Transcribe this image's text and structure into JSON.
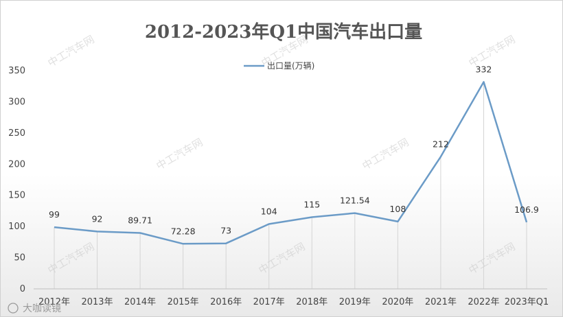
{
  "chart_data": {
    "type": "line",
    "title": "2012-2023年Q1中国汽车出口量",
    "categories": [
      "2012年",
      "2013年",
      "2014年",
      "2015年",
      "2016年",
      "2017年",
      "2018年",
      "2019年",
      "2020年",
      "2021年",
      "2022年",
      "2023年Q1"
    ],
    "series": [
      {
        "name": "出口量(万辆)",
        "values": [
          99,
          92,
          89.71,
          72.28,
          73,
          104,
          115,
          121.54,
          108,
          212,
          332,
          106.9
        ]
      }
    ],
    "data_labels": [
      "99",
      "92",
      "89.71",
      "72.28",
      "73",
      "104",
      "115",
      "121.54",
      "108",
      "212",
      "332",
      "106.9"
    ],
    "y_ticks": [
      "0",
      "50",
      "100",
      "150",
      "200",
      "250",
      "300",
      "350"
    ],
    "ylim": [
      0,
      350
    ],
    "legend_position": "top-center",
    "line_color": "#6b9bc7",
    "grid": false
  },
  "watermark": "中工汽车网",
  "footer_brand": "大咖读镜"
}
